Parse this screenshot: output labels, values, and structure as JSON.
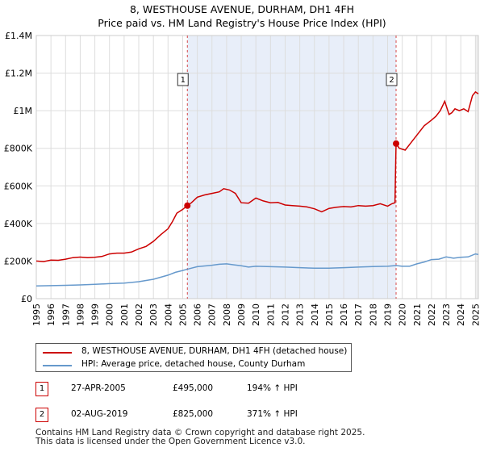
{
  "title": "8, WESTHOUSE AVENUE, DURHAM, DH1 4FH",
  "subtitle": "Price paid vs. HM Land Registry's House Price Index (HPI)",
  "colors": {
    "property": "#cc0000",
    "hpi": "#6699cc",
    "shade": "#e8eef9",
    "grid": "#dddddd",
    "marker": "#cc0000"
  },
  "chart_data": {
    "type": "line",
    "xlabel": "",
    "ylabel": "",
    "xlim": [
      1995,
      2025.2
    ],
    "ylim": [
      0,
      1400000
    ],
    "yticks": [
      {
        "value": 0,
        "label": "£0"
      },
      {
        "value": 200000,
        "label": "£200K"
      },
      {
        "value": 400000,
        "label": "£400K"
      },
      {
        "value": 600000,
        "label": "£600K"
      },
      {
        "value": 800000,
        "label": "£800K"
      },
      {
        "value": 1000000,
        "label": "£1M"
      },
      {
        "value": 1200000,
        "label": "£1.2M"
      },
      {
        "value": 1400000,
        "label": "£1.4M"
      }
    ],
    "xticks": [
      "1995",
      "1996",
      "1997",
      "1998",
      "1999",
      "2000",
      "2001",
      "2002",
      "2003",
      "2004",
      "2005",
      "2006",
      "2007",
      "2008",
      "2009",
      "2010",
      "2011",
      "2012",
      "2013",
      "2014",
      "2015",
      "2016",
      "2017",
      "2018",
      "2019",
      "2020",
      "2021",
      "2022",
      "2023",
      "2024",
      "2025"
    ],
    "shaded_region": [
      2005.32,
      2019.58
    ],
    "series": [
      {
        "name": "8, WESTHOUSE AVENUE, DURHAM, DH1 4FH (detached house)",
        "x": [
          1995,
          1995.5,
          1996,
          1996.5,
          1997,
          1997.5,
          1998,
          1998.5,
          1999,
          1999.5,
          2000,
          2000.5,
          2001,
          2001.5,
          2002,
          2002.5,
          2003,
          2003.5,
          2004,
          2004.3,
          2004.6,
          2005,
          2005.32,
          2005.6,
          2006,
          2006.5,
          2007,
          2007.5,
          2007.8,
          2008.2,
          2008.6,
          2009,
          2009.5,
          2010,
          2010.5,
          2011,
          2011.5,
          2012,
          2012.5,
          2013,
          2013.5,
          2014,
          2014.5,
          2015,
          2015.5,
          2016,
          2016.5,
          2017,
          2017.5,
          2018,
          2018.5,
          2019,
          2019.3,
          2019.5,
          2019.58,
          2019.8,
          2020.2,
          2020.5,
          2021,
          2021.5,
          2022,
          2022.3,
          2022.6,
          2022.9,
          2023.2,
          2023.4,
          2023.6,
          2023.9,
          2024.2,
          2024.5,
          2024.8,
          2025,
          2025.2
        ],
        "y": [
          200000,
          197000,
          205000,
          204000,
          210000,
          218000,
          221000,
          218000,
          220000,
          225000,
          238000,
          242000,
          242000,
          248000,
          265000,
          278000,
          305000,
          340000,
          372000,
          410000,
          455000,
          475000,
          495000,
          510000,
          540000,
          552000,
          560000,
          568000,
          585000,
          578000,
          560000,
          510000,
          508000,
          535000,
          520000,
          510000,
          512000,
          498000,
          495000,
          492000,
          488000,
          478000,
          462000,
          480000,
          486000,
          490000,
          488000,
          495000,
          492000,
          495000,
          505000,
          492000,
          505000,
          510000,
          825000,
          800000,
          790000,
          820000,
          870000,
          920000,
          950000,
          970000,
          1000000,
          1050000,
          980000,
          990000,
          1010000,
          1000000,
          1010000,
          995000,
          1080000,
          1100000,
          1090000
        ]
      },
      {
        "name": "HPI: Average price, detached house, County Durham",
        "x": [
          1995,
          1996,
          1997,
          1998,
          1999,
          2000,
          2001,
          2002,
          2003,
          2004,
          2004.5,
          2005,
          2005.5,
          2006,
          2007,
          2007.5,
          2008,
          2008.5,
          2009,
          2009.5,
          2010,
          2011,
          2012,
          2013,
          2014,
          2015,
          2016,
          2017,
          2018,
          2019,
          2019.58,
          2020,
          2020.5,
          2021,
          2021.5,
          2022,
          2022.5,
          2023,
          2023.5,
          2024,
          2024.5,
          2025,
          2025.2
        ],
        "y": [
          68000,
          69000,
          71000,
          73000,
          76000,
          80000,
          83000,
          90000,
          103000,
          125000,
          140000,
          150000,
          160000,
          170000,
          178000,
          183000,
          185000,
          180000,
          175000,
          168000,
          172000,
          170000,
          168000,
          165000,
          162000,
          162000,
          165000,
          168000,
          171000,
          172000,
          176000,
          172000,
          172000,
          185000,
          195000,
          208000,
          210000,
          222000,
          215000,
          220000,
          222000,
          238000,
          235000
        ]
      }
    ],
    "markers": [
      {
        "label": "1",
        "x": 2005.32,
        "y": 495000
      },
      {
        "label": "2",
        "x": 2019.58,
        "y": 825000
      }
    ]
  },
  "legend": {
    "property_label": "8, WESTHOUSE AVENUE, DURHAM, DH1 4FH (detached house)",
    "hpi_label": "HPI: Average price, detached house, County Durham"
  },
  "sales": [
    {
      "num": "1",
      "date": "27-APR-2005",
      "price": "£495,000",
      "hpi": "194% ↑ HPI"
    },
    {
      "num": "2",
      "date": "02-AUG-2019",
      "price": "£825,000",
      "hpi": "371% ↑ HPI"
    }
  ],
  "footer": {
    "line1": "Contains HM Land Registry data © Crown copyright and database right 2025.",
    "line2": "This data is licensed under the Open Government Licence v3.0."
  }
}
